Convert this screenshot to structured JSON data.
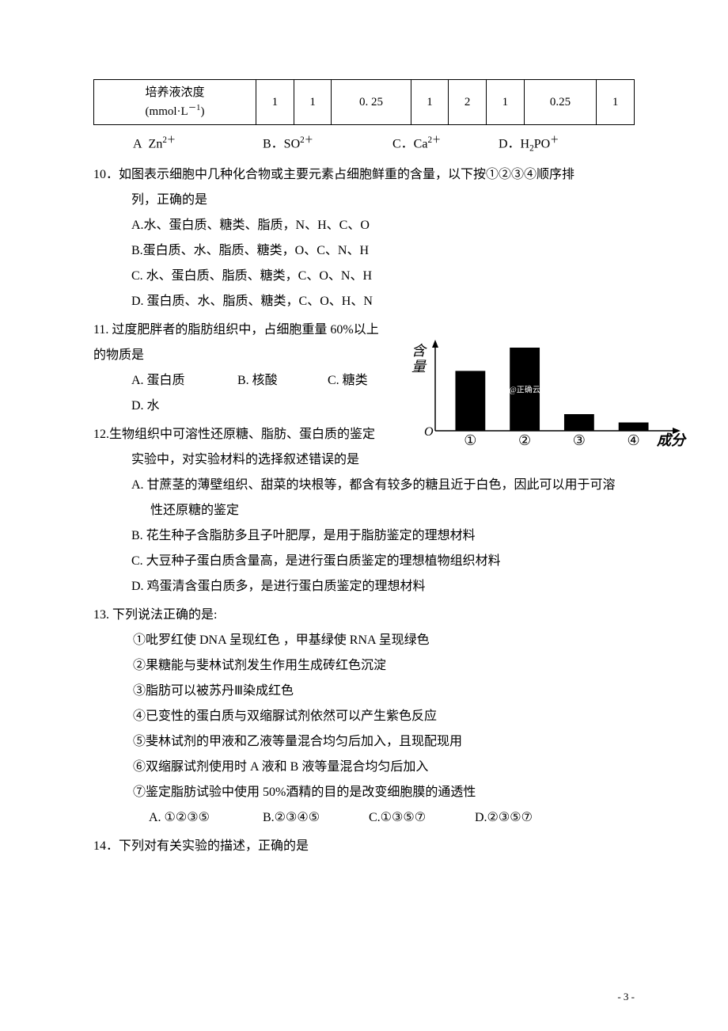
{
  "table": {
    "header": "培养液浓度<br>(mmol·L<sup>－1</sup>)",
    "row": [
      "1",
      "1",
      "0. 25",
      "1",
      "2",
      "1",
      "0.25",
      "1"
    ]
  },
  "q9_options": {
    "a": "A&nbsp;&nbsp;Zn<sup>2＋</sup>",
    "b": "B．SO<sup>2＋</sup>",
    "c": "C．Ca<sup>2＋</sup>",
    "d": "D．H<sub>2</sub>PO<sup>＋</sup>"
  },
  "q10": {
    "stem": "10．如图表示细胞中几种化合物或主要元素占细胞鲜重的含量，以下按①②③④顺序排",
    "stem2": "列，正确的是",
    "a": "A.水、蛋白质、糖类、脂质，N、H、C、O",
    "b": "B.蛋白质、水、脂质、糖类，O、C、N、H",
    "c": "C. 水、蛋白质、脂质、糖类，C、O、N、H",
    "d": "D. 蛋白质、水、脂质、糖类，C、O、H、N"
  },
  "q11": {
    "stem1": "11. 过度肥胖者的脂肪组织中，占细胞重量 60%以上",
    "stem2": "的物质是",
    "a": "A. 蛋白质",
    "b": "B. 核酸",
    "c": "C. 糖类",
    "d": "D. 水"
  },
  "q12": {
    "stem1": "12.生物组织中可溶性还原糖、脂肪、蛋白质的鉴定",
    "stem2": "实验中，对实验材料的选择叙述错误的是",
    "a1": "A. 甘蔗茎的薄壁组织、甜菜的块根等，都含有较多的糖且近于白色，因此可以用于可溶",
    "a2": "性还原糖的鉴定",
    "b": "B. 花生种子含脂肪多且子叶肥厚，是用于脂肪鉴定的理想材料",
    "c": "C. 大豆种子蛋白质含量高，是进行蛋白质鉴定的理想植物组织材料",
    "d": "D. 鸡蛋清含蛋白质多，是进行蛋白质鉴定的理想材料"
  },
  "q13": {
    "stem": "13. 下列说法正确的是:",
    "i1": "①吡罗红使 DNA 呈现红色 ，甲基绿使 RNA 呈现绿色",
    "i2": "②果糖能与斐林试剂发生作用生成砖红色沉淀",
    "i3": "③脂肪可以被苏丹Ⅲ染成红色",
    "i4": "④已变性的蛋白质与双缩脲试剂依然可以产生紫色反应",
    "i5": "⑤斐林试剂的甲液和乙液等量混合均匀后加入，且现配现用",
    "i6": "⑥双缩脲试剂使用时 A 液和 B 液等量混合均匀后加入",
    "i7": "⑦鉴定脂肪试验中使用 50%酒精的目的是改变细胞膜的通透性",
    "a": "A.  ①②③⑤",
    "b": "B.②③④⑤",
    "c": "C.①③⑤⑦",
    "d": "D.②③⑤⑦"
  },
  "q14": {
    "stem": "14．下列对有关实验的描述，正确的是"
  },
  "chart": {
    "type": "bar",
    "categories": [
      "①",
      "②",
      "③",
      "④"
    ],
    "values": [
      72,
      100,
      20,
      10
    ],
    "bar_color": "#000000",
    "background_color": "#ffffff",
    "y_axis_label": "含\n量",
    "x_axis_label": "成分",
    "axis_color": "#000000",
    "watermark_text": "@正确云",
    "watermark_color": "#ffffff",
    "label_font_family": "KaiTi",
    "label_fontsize": 18,
    "axis_label_fontsize": 18
  },
  "page_number": "- 3 -"
}
